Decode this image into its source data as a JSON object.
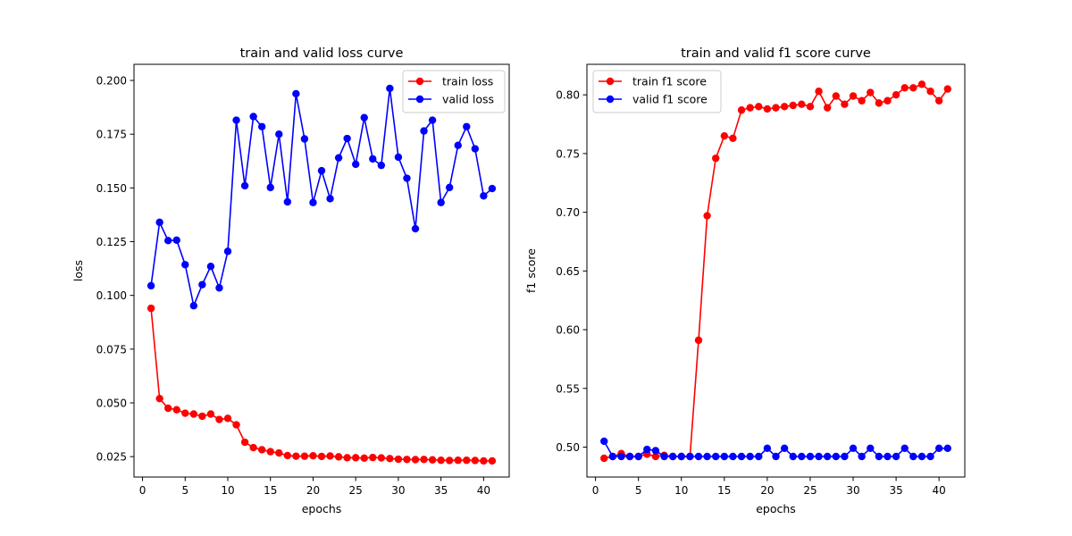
{
  "chart_data": [
    {
      "type": "line",
      "title": "train and valid loss curve",
      "xlabel": "epochs",
      "ylabel": "loss",
      "xlim": [
        -1.0,
        43.0
      ],
      "ylim": [
        0.0155,
        0.2075
      ],
      "xticks": [
        0,
        5,
        10,
        15,
        20,
        25,
        30,
        35,
        40
      ],
      "yticks": [
        0.025,
        0.05,
        0.075,
        0.1,
        0.125,
        0.15,
        0.175,
        0.2
      ],
      "ytick_labels": [
        "0.025",
        "0.050",
        "0.075",
        "0.100",
        "0.125",
        "0.150",
        "0.175",
        "0.200"
      ],
      "legend_position": "upper right",
      "grid": false,
      "x": [
        1,
        2,
        3,
        4,
        5,
        6,
        7,
        8,
        9,
        10,
        11,
        12,
        13,
        14,
        15,
        16,
        17,
        18,
        19,
        20,
        21,
        22,
        23,
        24,
        25,
        26,
        27,
        28,
        29,
        30,
        31,
        32,
        33,
        34,
        35,
        36,
        37,
        38,
        39,
        40,
        41
      ],
      "series": [
        {
          "name": "train loss",
          "color": "#ff0000",
          "values": [
            0.094,
            0.052,
            0.0475,
            0.0468,
            0.0452,
            0.0448,
            0.0438,
            0.0448,
            0.0423,
            0.0428,
            0.0398,
            0.0317,
            0.0292,
            0.0282,
            0.0273,
            0.0267,
            0.0255,
            0.0252,
            0.0252,
            0.0254,
            0.0251,
            0.0253,
            0.0249,
            0.0245,
            0.0245,
            0.0243,
            0.0246,
            0.0244,
            0.0241,
            0.0238,
            0.0237,
            0.0236,
            0.0237,
            0.0235,
            0.0233,
            0.0232,
            0.0233,
            0.0233,
            0.0232,
            0.023,
            0.023
          ]
        },
        {
          "name": "valid loss",
          "color": "#0000ff",
          "values": [
            0.1045,
            0.134,
            0.1255,
            0.1257,
            0.1143,
            0.0952,
            0.105,
            0.1135,
            0.1035,
            0.1205,
            0.1815,
            0.151,
            0.1832,
            0.1785,
            0.1502,
            0.175,
            0.1435,
            0.1938,
            0.1728,
            0.1432,
            0.158,
            0.145,
            0.164,
            0.173,
            0.161,
            0.1827,
            0.1635,
            0.1605,
            0.1963,
            0.1643,
            0.1545,
            0.131,
            0.1765,
            0.1815,
            0.1432,
            0.1502,
            0.1698,
            0.1785,
            0.1682,
            0.1463,
            0.1497
          ]
        }
      ]
    },
    {
      "type": "line",
      "title": "train and valid f1 score curve",
      "xlabel": "epochs",
      "ylabel": "f1 score",
      "xlim": [
        -1.0,
        43.0
      ],
      "ylim": [
        0.4745,
        0.826
      ],
      "xticks": [
        0,
        5,
        10,
        15,
        20,
        25,
        30,
        35,
        40
      ],
      "yticks": [
        0.5,
        0.55,
        0.6,
        0.65,
        0.7,
        0.75,
        0.8
      ],
      "ytick_labels": [
        "0.50",
        "0.55",
        "0.60",
        "0.65",
        "0.70",
        "0.75",
        "0.80"
      ],
      "legend_position": "upper left",
      "grid": false,
      "x": [
        1,
        2,
        3,
        4,
        5,
        6,
        7,
        8,
        9,
        10,
        11,
        12,
        13,
        14,
        15,
        16,
        17,
        18,
        19,
        20,
        21,
        22,
        23,
        24,
        25,
        26,
        27,
        28,
        29,
        30,
        31,
        32,
        33,
        34,
        35,
        36,
        37,
        38,
        39,
        40,
        41
      ],
      "series": [
        {
          "name": "train f1 score",
          "color": "#ff0000",
          "values": [
            0.4905,
            0.492,
            0.4945,
            0.492,
            0.492,
            0.494,
            0.492,
            0.493,
            0.492,
            0.492,
            0.492,
            0.591,
            0.697,
            0.746,
            0.765,
            0.763,
            0.787,
            0.789,
            0.79,
            0.788,
            0.789,
            0.79,
            0.791,
            0.792,
            0.79,
            0.803,
            0.789,
            0.799,
            0.792,
            0.799,
            0.795,
            0.802,
            0.793,
            0.795,
            0.8,
            0.806,
            0.806,
            0.809,
            0.803,
            0.795,
            0.805
          ]
        },
        {
          "name": "valid f1 score",
          "color": "#0000ff",
          "values": [
            0.505,
            0.492,
            0.492,
            0.492,
            0.492,
            0.498,
            0.497,
            0.492,
            0.492,
            0.492,
            0.492,
            0.492,
            0.492,
            0.492,
            0.492,
            0.492,
            0.492,
            0.492,
            0.492,
            0.499,
            0.492,
            0.499,
            0.492,
            0.492,
            0.492,
            0.492,
            0.492,
            0.492,
            0.492,
            0.499,
            0.492,
            0.499,
            0.492,
            0.492,
            0.492,
            0.499,
            0.492,
            0.492,
            0.492,
            0.499,
            0.499
          ]
        }
      ]
    }
  ]
}
